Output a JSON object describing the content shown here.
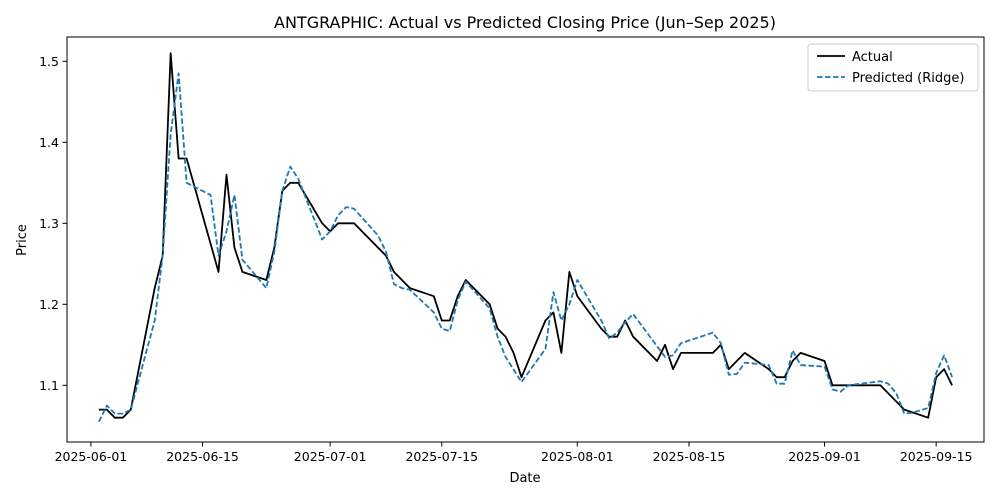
{
  "chart_data": {
    "type": "line",
    "title": "ANTGRAPHIC: Actual vs Predicted Closing Price (Jun–Sep 2025)",
    "xlabel": "Date",
    "ylabel": "Price",
    "x_type": "date",
    "xlim": [
      "2025-05-29",
      "2025-09-21"
    ],
    "ylim": [
      1.03,
      1.53
    ],
    "x_ticks": [
      "2025-06-01",
      "2025-06-15",
      "2025-07-01",
      "2025-07-15",
      "2025-08-01",
      "2025-08-15",
      "2025-09-01",
      "2025-09-15"
    ],
    "y_ticks": [
      1.1,
      1.2,
      1.3,
      1.4,
      1.5
    ],
    "y_tick_labels": [
      "1.1",
      "1.2",
      "1.3",
      "1.4",
      "1.5"
    ],
    "grid": false,
    "legend_position": "top-right",
    "series": [
      {
        "name": "Actual",
        "color": "#000000",
        "style": "solid",
        "points": [
          [
            "2025-06-02",
            1.07
          ],
          [
            "2025-06-03",
            1.07
          ],
          [
            "2025-06-04",
            1.06
          ],
          [
            "2025-06-05",
            1.06
          ],
          [
            "2025-06-06",
            1.07
          ],
          [
            "2025-06-09",
            1.22
          ],
          [
            "2025-06-10",
            1.26
          ],
          [
            "2025-06-11",
            1.51
          ],
          [
            "2025-06-12",
            1.38
          ],
          [
            "2025-06-13",
            1.38
          ],
          [
            "2025-06-17",
            1.24
          ],
          [
            "2025-06-18",
            1.36
          ],
          [
            "2025-06-19",
            1.27
          ],
          [
            "2025-06-20",
            1.24
          ],
          [
            "2025-06-23",
            1.23
          ],
          [
            "2025-06-24",
            1.27
          ],
          [
            "2025-06-25",
            1.34
          ],
          [
            "2025-06-26",
            1.35
          ],
          [
            "2025-06-27",
            1.35
          ],
          [
            "2025-06-30",
            1.3
          ],
          [
            "2025-07-01",
            1.29
          ],
          [
            "2025-07-02",
            1.3
          ],
          [
            "2025-07-04",
            1.3
          ],
          [
            "2025-07-08",
            1.26
          ],
          [
            "2025-07-09",
            1.24
          ],
          [
            "2025-07-11",
            1.22
          ],
          [
            "2025-07-14",
            1.21
          ],
          [
            "2025-07-15",
            1.18
          ],
          [
            "2025-07-16",
            1.18
          ],
          [
            "2025-07-17",
            1.21
          ],
          [
            "2025-07-18",
            1.23
          ],
          [
            "2025-07-21",
            1.2
          ],
          [
            "2025-07-22",
            1.17
          ],
          [
            "2025-07-23",
            1.16
          ],
          [
            "2025-07-24",
            1.14
          ],
          [
            "2025-07-25",
            1.11
          ],
          [
            "2025-07-28",
            1.18
          ],
          [
            "2025-07-29",
            1.19
          ],
          [
            "2025-07-30",
            1.14
          ],
          [
            "2025-07-31",
            1.24
          ],
          [
            "2025-08-01",
            1.21
          ],
          [
            "2025-08-04",
            1.17
          ],
          [
            "2025-08-05",
            1.16
          ],
          [
            "2025-08-06",
            1.16
          ],
          [
            "2025-08-07",
            1.18
          ],
          [
            "2025-08-08",
            1.16
          ],
          [
            "2025-08-11",
            1.13
          ],
          [
            "2025-08-12",
            1.15
          ],
          [
            "2025-08-13",
            1.12
          ],
          [
            "2025-08-14",
            1.14
          ],
          [
            "2025-08-18",
            1.14
          ],
          [
            "2025-08-19",
            1.15
          ],
          [
            "2025-08-20",
            1.12
          ],
          [
            "2025-08-22",
            1.14
          ],
          [
            "2025-08-25",
            1.12
          ],
          [
            "2025-08-26",
            1.11
          ],
          [
            "2025-08-27",
            1.11
          ],
          [
            "2025-08-28",
            1.13
          ],
          [
            "2025-08-29",
            1.14
          ],
          [
            "2025-09-01",
            1.13
          ],
          [
            "2025-09-02",
            1.1
          ],
          [
            "2025-09-08",
            1.1
          ],
          [
            "2025-09-09",
            1.09
          ],
          [
            "2025-09-11",
            1.07
          ],
          [
            "2025-09-14",
            1.06
          ],
          [
            "2025-09-15",
            1.11
          ],
          [
            "2025-09-16",
            1.12
          ],
          [
            "2025-09-17",
            1.1
          ]
        ]
      },
      {
        "name": "Predicted (Ridge)",
        "color": "#1f77b4",
        "style": "dashed",
        "points": [
          [
            "2025-06-02",
            1.055
          ],
          [
            "2025-06-03",
            1.075
          ],
          [
            "2025-06-04",
            1.065
          ],
          [
            "2025-06-05",
            1.065
          ],
          [
            "2025-06-06",
            1.07
          ],
          [
            "2025-06-09",
            1.18
          ],
          [
            "2025-06-10",
            1.26
          ],
          [
            "2025-06-11",
            1.41
          ],
          [
            "2025-06-12",
            1.485
          ],
          [
            "2025-06-13",
            1.35
          ],
          [
            "2025-06-16",
            1.335
          ],
          [
            "2025-06-17",
            1.26
          ],
          [
            "2025-06-18",
            1.29
          ],
          [
            "2025-06-19",
            1.335
          ],
          [
            "2025-06-20",
            1.255
          ],
          [
            "2025-06-23",
            1.22
          ],
          [
            "2025-06-24",
            1.265
          ],
          [
            "2025-06-25",
            1.34
          ],
          [
            "2025-06-26",
            1.37
          ],
          [
            "2025-06-27",
            1.355
          ],
          [
            "2025-06-30",
            1.28
          ],
          [
            "2025-07-01",
            1.29
          ],
          [
            "2025-07-02",
            1.31
          ],
          [
            "2025-07-03",
            1.32
          ],
          [
            "2025-07-04",
            1.318
          ],
          [
            "2025-07-07",
            1.285
          ],
          [
            "2025-07-08",
            1.265
          ],
          [
            "2025-07-09",
            1.225
          ],
          [
            "2025-07-10",
            1.22
          ],
          [
            "2025-07-11",
            1.218
          ],
          [
            "2025-07-14",
            1.19
          ],
          [
            "2025-07-15",
            1.17
          ],
          [
            "2025-07-16",
            1.167
          ],
          [
            "2025-07-17",
            1.205
          ],
          [
            "2025-07-18",
            1.228
          ],
          [
            "2025-07-21",
            1.195
          ],
          [
            "2025-07-22",
            1.16
          ],
          [
            "2025-07-23",
            1.135
          ],
          [
            "2025-07-25",
            1.104
          ],
          [
            "2025-07-28",
            1.145
          ],
          [
            "2025-07-29",
            1.215
          ],
          [
            "2025-07-30",
            1.18
          ],
          [
            "2025-07-31",
            1.2
          ],
          [
            "2025-08-01",
            1.23
          ],
          [
            "2025-08-04",
            1.18
          ],
          [
            "2025-08-05",
            1.158
          ],
          [
            "2025-08-06",
            1.165
          ],
          [
            "2025-08-07",
            1.178
          ],
          [
            "2025-08-08",
            1.188
          ],
          [
            "2025-08-12",
            1.135
          ],
          [
            "2025-08-13",
            1.137
          ],
          [
            "2025-08-14",
            1.152
          ],
          [
            "2025-08-18",
            1.165
          ],
          [
            "2025-08-19",
            1.152
          ],
          [
            "2025-08-20",
            1.113
          ],
          [
            "2025-08-21",
            1.114
          ],
          [
            "2025-08-22",
            1.128
          ],
          [
            "2025-08-25",
            1.125
          ],
          [
            "2025-08-26",
            1.102
          ],
          [
            "2025-08-27",
            1.102
          ],
          [
            "2025-08-28",
            1.143
          ],
          [
            "2025-08-29",
            1.125
          ],
          [
            "2025-09-01",
            1.123
          ],
          [
            "2025-09-02",
            1.095
          ],
          [
            "2025-09-03",
            1.092
          ],
          [
            "2025-09-04",
            1.1
          ],
          [
            "2025-09-08",
            1.105
          ],
          [
            "2025-09-09",
            1.102
          ],
          [
            "2025-09-10",
            1.09
          ],
          [
            "2025-09-11",
            1.065
          ],
          [
            "2025-09-12",
            1.066
          ],
          [
            "2025-09-14",
            1.072
          ],
          [
            "2025-09-15",
            1.115
          ],
          [
            "2025-09-16",
            1.137
          ],
          [
            "2025-09-17",
            1.11
          ]
        ]
      }
    ]
  }
}
